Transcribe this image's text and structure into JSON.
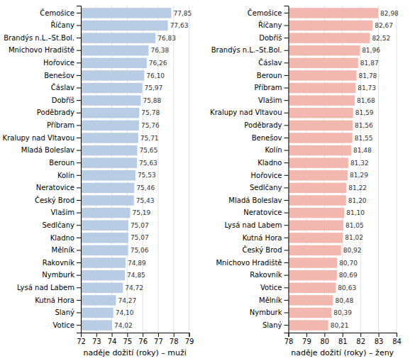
{
  "chart_data": [
    {
      "type": "bar",
      "orientation": "horizontal",
      "categories": [
        "Čemošice",
        "Říčany",
        "Brandýs n.L.–St.Bol.",
        "Mnichovo Hradiště",
        "Hořovice",
        "Benešov",
        "Čáslav",
        "Dobříš",
        "Poděbrady",
        "Příbram",
        "Kralupy nad Vltavou",
        "Mladá Boleslav",
        "Beroun",
        "Kolín",
        "Neratovice",
        "Český Brod",
        "Vlašim",
        "Sedlčany",
        "Kladno",
        "Mělník",
        "Rakovník",
        "Nymburk",
        "Lysá nad Labem",
        "Kutná Hora",
        "Slaný",
        "Votice"
      ],
      "values": [
        77.85,
        77.63,
        76.83,
        76.38,
        76.26,
        76.1,
        75.97,
        75.88,
        75.78,
        75.76,
        75.71,
        75.65,
        75.63,
        75.53,
        75.46,
        75.43,
        75.19,
        75.07,
        75.07,
        75.06,
        74.89,
        74.85,
        74.72,
        74.27,
        74.1,
        74.02
      ],
      "value_labels": [
        "77,85",
        "77,63",
        "76,83",
        "76,38",
        "76,26",
        "76,10",
        "75,97",
        "75,88",
        "75,78",
        "75,76",
        "75,71",
        "75,65",
        "75,63",
        "75,53",
        "75,46",
        "75,43",
        "75,19",
        "75,07",
        "75,07",
        "75,06",
        "74,89",
        "74,85",
        "74,72",
        "74,27",
        "74,10",
        "74,02"
      ],
      "data_labels": true,
      "color": "#b8cce4",
      "xlabel": "naděje dožití (roky) – muži",
      "xlim": [
        72,
        79
      ],
      "xticks": [
        72,
        73,
        74,
        75,
        76,
        77,
        78,
        79
      ],
      "grid": true
    },
    {
      "type": "bar",
      "orientation": "horizontal",
      "categories": [
        "Čemošice",
        "Říčany",
        "Dobříš",
        "Brandýs n.L.–St.Bol.",
        "Čáslav",
        "Beroun",
        "Příbram",
        "Vlašim",
        "Kralupy nad Vltavou",
        "Poděbrady",
        "Benešov",
        "Kolín",
        "Kladno",
        "Hořovice",
        "Sedlčany",
        "Mladá Boleslav",
        "Neratovice",
        "Lysá nad Labem",
        "Kutná Hora",
        "Český Brod",
        "Mnichovo Hradiště",
        "Rakovník",
        "Votice",
        "Mělník",
        "Nymburk",
        "Slaný"
      ],
      "values": [
        82.98,
        82.67,
        82.52,
        81.96,
        81.87,
        81.78,
        81.73,
        81.68,
        81.59,
        81.56,
        81.55,
        81.48,
        81.32,
        81.29,
        81.22,
        81.2,
        81.1,
        81.05,
        81.02,
        80.92,
        80.7,
        80.69,
        80.63,
        80.48,
        80.39,
        80.21
      ],
      "value_labels": [
        "82,98",
        "82,67",
        "82,52",
        "81,96",
        "81,87",
        "81,78",
        "81,73",
        "81,68",
        "81,59",
        "81,56",
        "81,55",
        "81,48",
        "81,32",
        "81,29",
        "81,22",
        "81,20",
        "81,10",
        "81,05",
        "81,02",
        "80,92",
        "80,70",
        "80,69",
        "80,63",
        "80,48",
        "80,39",
        "80,21"
      ],
      "data_labels": true,
      "color": "#f2b8b0",
      "xlabel": "naděje dožití (roky) – ženy",
      "xlim": [
        78,
        84
      ],
      "xticks": [
        78,
        79,
        80,
        81,
        82,
        83,
        84
      ],
      "grid": true
    }
  ]
}
